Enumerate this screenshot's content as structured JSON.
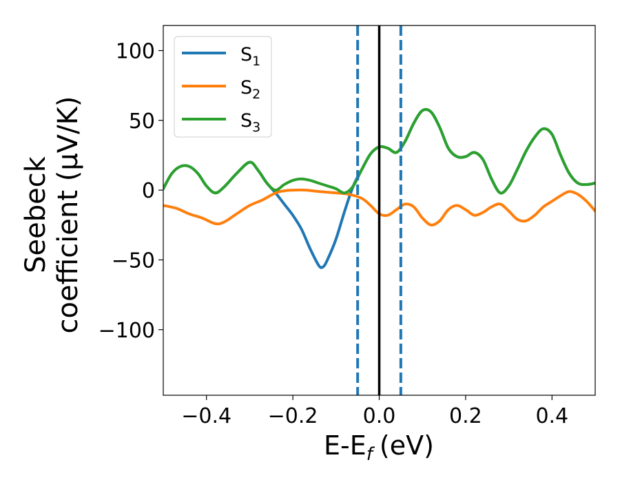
{
  "chart_data": {
    "type": "line",
    "xlabel": "E-E",
    "xlabel_sub": "f",
    "xlabel_unit": "(eV)",
    "ylabel_line1": "Seebeck",
    "ylabel_line2": "coefficient  (μV/K)",
    "xlim": [
      -0.5,
      0.5
    ],
    "ylim": [
      -147,
      118
    ],
    "x_ticks": [
      -0.4,
      -0.2,
      0.0,
      0.2,
      0.4
    ],
    "x_tick_labels": [
      "−0.4",
      "−0.2",
      "0.0",
      "0.2",
      "0.4"
    ],
    "y_ticks": [
      100,
      50,
      0,
      -50,
      -100
    ],
    "y_tick_labels": [
      "100",
      "50",
      "0",
      "−50",
      "−100"
    ],
    "grid": false,
    "legend_position": "top-left",
    "vertical_lines": [
      {
        "x": -0.05,
        "color": "#1f77b4",
        "style": "dashed"
      },
      {
        "x": 0.0,
        "color": "#000000",
        "style": "solid"
      },
      {
        "x": 0.05,
        "color": "#1f77b4",
        "style": "dashed"
      }
    ],
    "series": [
      {
        "name": "S",
        "sub": "1",
        "color": "#1f77b4",
        "points": [
          [
            -0.5,
            1
          ],
          [
            -0.48,
            12
          ],
          [
            -0.46,
            17
          ],
          [
            -0.44,
            17
          ],
          [
            -0.42,
            12
          ],
          [
            -0.4,
            3
          ],
          [
            -0.38,
            -2
          ],
          [
            -0.36,
            2
          ],
          [
            -0.33,
            12
          ],
          [
            -0.3,
            20
          ],
          [
            -0.28,
            14
          ],
          [
            -0.26,
            5
          ],
          [
            -0.24,
            -2
          ],
          [
            -0.22,
            -10
          ],
          [
            -0.2,
            -18
          ],
          [
            -0.18,
            -28
          ],
          [
            -0.16,
            -42
          ],
          [
            -0.14,
            -54
          ],
          [
            -0.13,
            -55
          ],
          [
            -0.12,
            -50
          ],
          [
            -0.1,
            -35
          ],
          [
            -0.08,
            -15
          ],
          [
            -0.06,
            3
          ],
          [
            -0.04,
            15
          ],
          [
            -0.02,
            26
          ],
          [
            0.0,
            31
          ],
          [
            0.02,
            30
          ],
          [
            0.04,
            27
          ],
          [
            0.06,
            35
          ],
          [
            0.08,
            48
          ],
          [
            0.1,
            57
          ],
          [
            0.12,
            56
          ],
          [
            0.14,
            45
          ],
          [
            0.16,
            30
          ],
          [
            0.18,
            24
          ],
          [
            0.2,
            24
          ],
          [
            0.22,
            27
          ],
          [
            0.24,
            22
          ],
          [
            0.26,
            8
          ],
          [
            0.28,
            -2
          ],
          [
            0.3,
            3
          ],
          [
            0.32,
            15
          ],
          [
            0.34,
            28
          ],
          [
            0.36,
            38
          ],
          [
            0.38,
            44
          ],
          [
            0.4,
            40
          ],
          [
            0.42,
            25
          ],
          [
            0.44,
            12
          ],
          [
            0.46,
            5
          ],
          [
            0.48,
            4
          ],
          [
            0.5,
            5
          ]
        ]
      },
      {
        "name": "S",
        "sub": "2",
        "color": "#ff7f0e",
        "points": [
          [
            -0.5,
            -11
          ],
          [
            -0.47,
            -13
          ],
          [
            -0.44,
            -17
          ],
          [
            -0.41,
            -20
          ],
          [
            -0.38,
            -24
          ],
          [
            -0.36,
            -23
          ],
          [
            -0.33,
            -17
          ],
          [
            -0.3,
            -11
          ],
          [
            -0.27,
            -7
          ],
          [
            -0.24,
            -2
          ],
          [
            -0.22,
            -0.5
          ],
          [
            -0.2,
            0
          ],
          [
            -0.17,
            0
          ],
          [
            -0.14,
            -1
          ],
          [
            -0.1,
            -2
          ],
          [
            -0.07,
            -3
          ],
          [
            -0.04,
            -6
          ],
          [
            -0.02,
            -11
          ],
          [
            0.0,
            -17
          ],
          [
            0.02,
            -18
          ],
          [
            0.04,
            -14
          ],
          [
            0.06,
            -10
          ],
          [
            0.08,
            -12
          ],
          [
            0.1,
            -20
          ],
          [
            0.12,
            -25
          ],
          [
            0.14,
            -22
          ],
          [
            0.16,
            -14
          ],
          [
            0.18,
            -11
          ],
          [
            0.2,
            -14
          ],
          [
            0.22,
            -18
          ],
          [
            0.24,
            -16
          ],
          [
            0.26,
            -12
          ],
          [
            0.28,
            -10
          ],
          [
            0.3,
            -15
          ],
          [
            0.32,
            -21
          ],
          [
            0.34,
            -22
          ],
          [
            0.36,
            -18
          ],
          [
            0.38,
            -12
          ],
          [
            0.4,
            -8
          ],
          [
            0.42,
            -4
          ],
          [
            0.44,
            -1
          ],
          [
            0.46,
            -3
          ],
          [
            0.48,
            -8
          ],
          [
            0.5,
            -15
          ]
        ]
      },
      {
        "name": "S",
        "sub": "3",
        "color": "#2ca02c",
        "points": [
          [
            -0.5,
            1
          ],
          [
            -0.48,
            12
          ],
          [
            -0.46,
            17
          ],
          [
            -0.44,
            17
          ],
          [
            -0.42,
            12
          ],
          [
            -0.4,
            3
          ],
          [
            -0.38,
            -2
          ],
          [
            -0.36,
            2
          ],
          [
            -0.33,
            12
          ],
          [
            -0.3,
            20
          ],
          [
            -0.28,
            14
          ],
          [
            -0.26,
            5
          ],
          [
            -0.24,
            0
          ],
          [
            -0.22,
            4
          ],
          [
            -0.2,
            7
          ],
          [
            -0.18,
            8
          ],
          [
            -0.16,
            7
          ],
          [
            -0.14,
            5
          ],
          [
            -0.12,
            3
          ],
          [
            -0.1,
            1
          ],
          [
            -0.08,
            -2
          ],
          [
            -0.06,
            3
          ],
          [
            -0.04,
            15
          ],
          [
            -0.02,
            26
          ],
          [
            0.0,
            31
          ],
          [
            0.02,
            30
          ],
          [
            0.04,
            27
          ],
          [
            0.06,
            35
          ],
          [
            0.08,
            48
          ],
          [
            0.1,
            57
          ],
          [
            0.12,
            56
          ],
          [
            0.14,
            45
          ],
          [
            0.16,
            30
          ],
          [
            0.18,
            24
          ],
          [
            0.2,
            24
          ],
          [
            0.22,
            27
          ],
          [
            0.24,
            22
          ],
          [
            0.26,
            8
          ],
          [
            0.28,
            -2
          ],
          [
            0.3,
            3
          ],
          [
            0.32,
            15
          ],
          [
            0.34,
            28
          ],
          [
            0.36,
            38
          ],
          [
            0.38,
            44
          ],
          [
            0.4,
            40
          ],
          [
            0.42,
            25
          ],
          [
            0.44,
            12
          ],
          [
            0.46,
            5
          ],
          [
            0.48,
            4
          ],
          [
            0.5,
            5
          ]
        ]
      }
    ]
  }
}
